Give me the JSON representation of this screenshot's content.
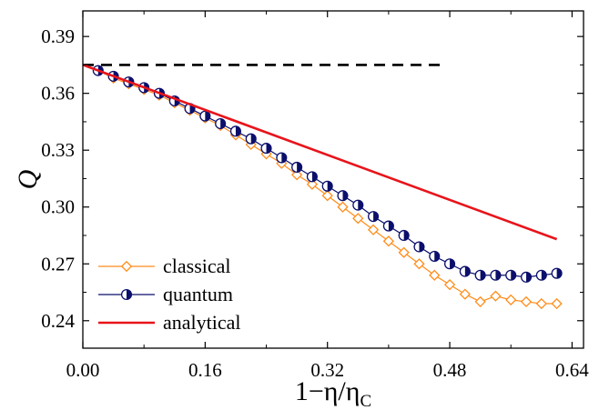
{
  "chart_data": {
    "type": "line",
    "xlabel": "1−η/η",
    "xlabel_sub": "C",
    "ylabel": "Q",
    "xlim": [
      0.0,
      0.655
    ],
    "ylim": [
      0.2255,
      0.4035
    ],
    "xticks": [
      0.0,
      0.16,
      0.32,
      0.48,
      0.64
    ],
    "xtick_labels": [
      "0.00",
      "0.16",
      "0.32",
      "0.48",
      "0.64"
    ],
    "yticks": [
      0.24,
      0.27,
      0.3,
      0.33,
      0.36,
      0.39
    ],
    "ytick_labels": [
      "0.24",
      "0.27",
      "0.30",
      "0.33",
      "0.36",
      "0.39"
    ],
    "grid": false,
    "legend_position": "bottom-left",
    "reference_line": {
      "style": "dashed",
      "color": "#000000",
      "y": 0.375,
      "x": [
        0.0,
        0.47
      ]
    },
    "series": [
      {
        "name": "classical",
        "marker": "diamond",
        "color": "#FF8C1A",
        "x": [
          0.02,
          0.04,
          0.06,
          0.08,
          0.1,
          0.12,
          0.14,
          0.16,
          0.18,
          0.2,
          0.22,
          0.24,
          0.26,
          0.28,
          0.3,
          0.32,
          0.34,
          0.36,
          0.38,
          0.4,
          0.42,
          0.44,
          0.46,
          0.48,
          0.5,
          0.52,
          0.54,
          0.56,
          0.58,
          0.6,
          0.62
        ],
        "values": [
          0.372,
          0.368,
          0.365,
          0.362,
          0.359,
          0.355,
          0.351,
          0.347,
          0.343,
          0.338,
          0.333,
          0.328,
          0.323,
          0.317,
          0.312,
          0.306,
          0.3,
          0.294,
          0.288,
          0.282,
          0.276,
          0.27,
          0.264,
          0.259,
          0.254,
          0.25,
          0.253,
          0.251,
          0.25,
          0.249,
          0.249
        ]
      },
      {
        "name": "quantum",
        "marker": "half-filled-circle",
        "color": "#0B0F6B",
        "x": [
          0.02,
          0.04,
          0.06,
          0.08,
          0.1,
          0.12,
          0.14,
          0.16,
          0.18,
          0.2,
          0.22,
          0.24,
          0.26,
          0.28,
          0.3,
          0.32,
          0.34,
          0.36,
          0.38,
          0.4,
          0.42,
          0.44,
          0.46,
          0.48,
          0.5,
          0.52,
          0.54,
          0.56,
          0.58,
          0.6,
          0.62
        ],
        "values": [
          0.372,
          0.369,
          0.366,
          0.363,
          0.36,
          0.356,
          0.352,
          0.348,
          0.344,
          0.34,
          0.336,
          0.331,
          0.326,
          0.321,
          0.316,
          0.311,
          0.306,
          0.301,
          0.295,
          0.29,
          0.285,
          0.279,
          0.274,
          0.27,
          0.266,
          0.264,
          0.264,
          0.264,
          0.263,
          0.264,
          0.265
        ]
      },
      {
        "name": "analytical",
        "marker": "none",
        "color": "#E8141B",
        "x": [
          0.0,
          0.62
        ],
        "values": [
          0.375,
          0.283
        ]
      }
    ]
  }
}
